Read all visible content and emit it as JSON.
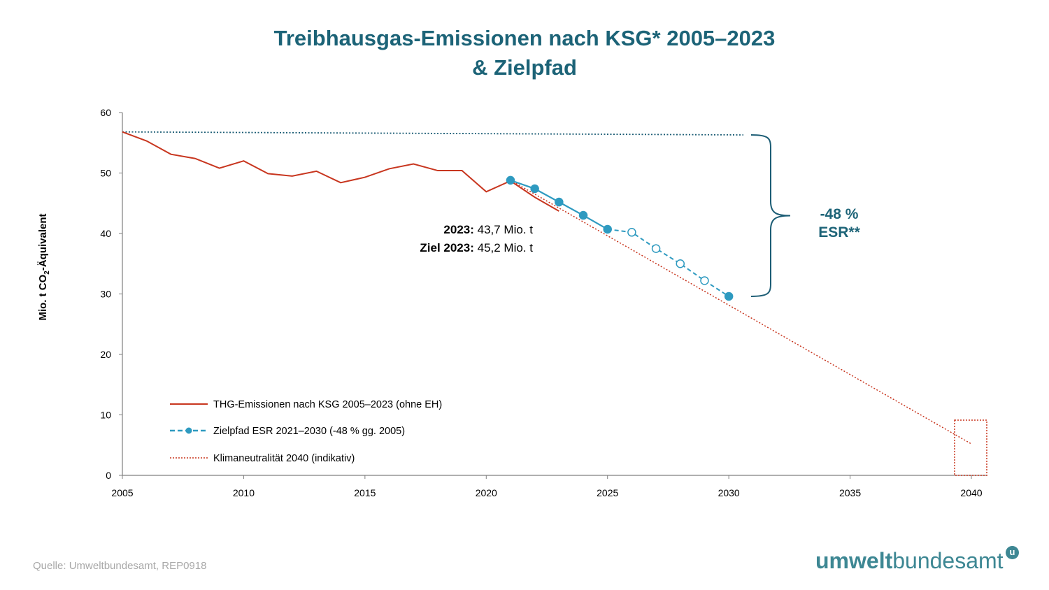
{
  "chart_data": {
    "type": "line",
    "title_line1": "Treibhausgas-Emissionen nach KSG* 2005–2023",
    "title_line2": "& Zielpfad",
    "ylabel_main": "Mio. t CO",
    "ylabel_sub": "2",
    "ylabel_rest": "-Äquivalent",
    "xlim": [
      2005,
      2040
    ],
    "ylim": [
      0,
      60
    ],
    "xticks": [
      2005,
      2010,
      2015,
      2020,
      2025,
      2030,
      2035,
      2040
    ],
    "yticks": [
      0,
      10,
      20,
      30,
      40,
      50,
      60
    ],
    "grid": false,
    "legend_position": "bottom-left",
    "series": [
      {
        "name": "THG-Emissionen nach KSG 2005–2023 (ohne EH)",
        "style": "solid",
        "color": "#c8361f",
        "x": [
          2005,
          2006,
          2007,
          2008,
          2009,
          2010,
          2011,
          2012,
          2013,
          2014,
          2015,
          2016,
          2017,
          2018,
          2019,
          2020,
          2021,
          2022,
          2023
        ],
        "y": [
          56.8,
          55.3,
          53.1,
          52.4,
          50.8,
          52.0,
          49.9,
          49.5,
          50.3,
          48.4,
          49.3,
          50.7,
          51.5,
          50.4,
          50.4,
          46.9,
          48.7,
          46.0,
          43.7
        ]
      },
      {
        "name": "Zielpfad ESR 2021–2030 (-48 % gg. 2005)",
        "style": "dashed-markers",
        "color": "#2e9ac0",
        "x": [
          2021,
          2022,
          2023,
          2024,
          2025,
          2026,
          2027,
          2028,
          2029,
          2030
        ],
        "y": [
          48.8,
          47.4,
          45.2,
          43.0,
          40.7,
          40.2,
          37.5,
          35.0,
          32.2,
          29.6
        ],
        "open_marker": [
          false,
          false,
          false,
          false,
          false,
          true,
          true,
          true,
          false,
          false
        ],
        "open_marker_fixed": [
          false,
          false,
          false,
          false,
          false,
          true,
          true,
          true,
          true,
          false
        ]
      },
      {
        "name": "Klimaneutralität 2040 (indikativ)",
        "style": "dotted",
        "color": "#c8361f",
        "x": [
          2021,
          2040
        ],
        "y": [
          48.8,
          5.2
        ]
      },
      {
        "name": "",
        "style": "dotted-reference",
        "color": "#1c5d75",
        "x": [
          2005,
          2030.6
        ],
        "y": [
          56.8,
          56.3
        ]
      }
    ],
    "annotations": {
      "value_2023_label": "2023:",
      "value_2023_text": "43,7 Mio. t",
      "target_2023_label": "Ziel 2023:",
      "target_2023_text": "45,2 Mio. t",
      "esr_reduction": "-48 %",
      "esr_label": "ESR**"
    }
  },
  "footer": {
    "source": "Quelle: Umweltbundesamt, REP0918",
    "logo_bold": "umwelt",
    "logo_regular": "bundesamt",
    "logo_badge": "u"
  },
  "colors": {
    "title": "#1c6377",
    "emissions": "#c8361f",
    "target_path": "#2e9ac0",
    "reference_line": "#1c5d75",
    "logo": "#3d8793"
  }
}
